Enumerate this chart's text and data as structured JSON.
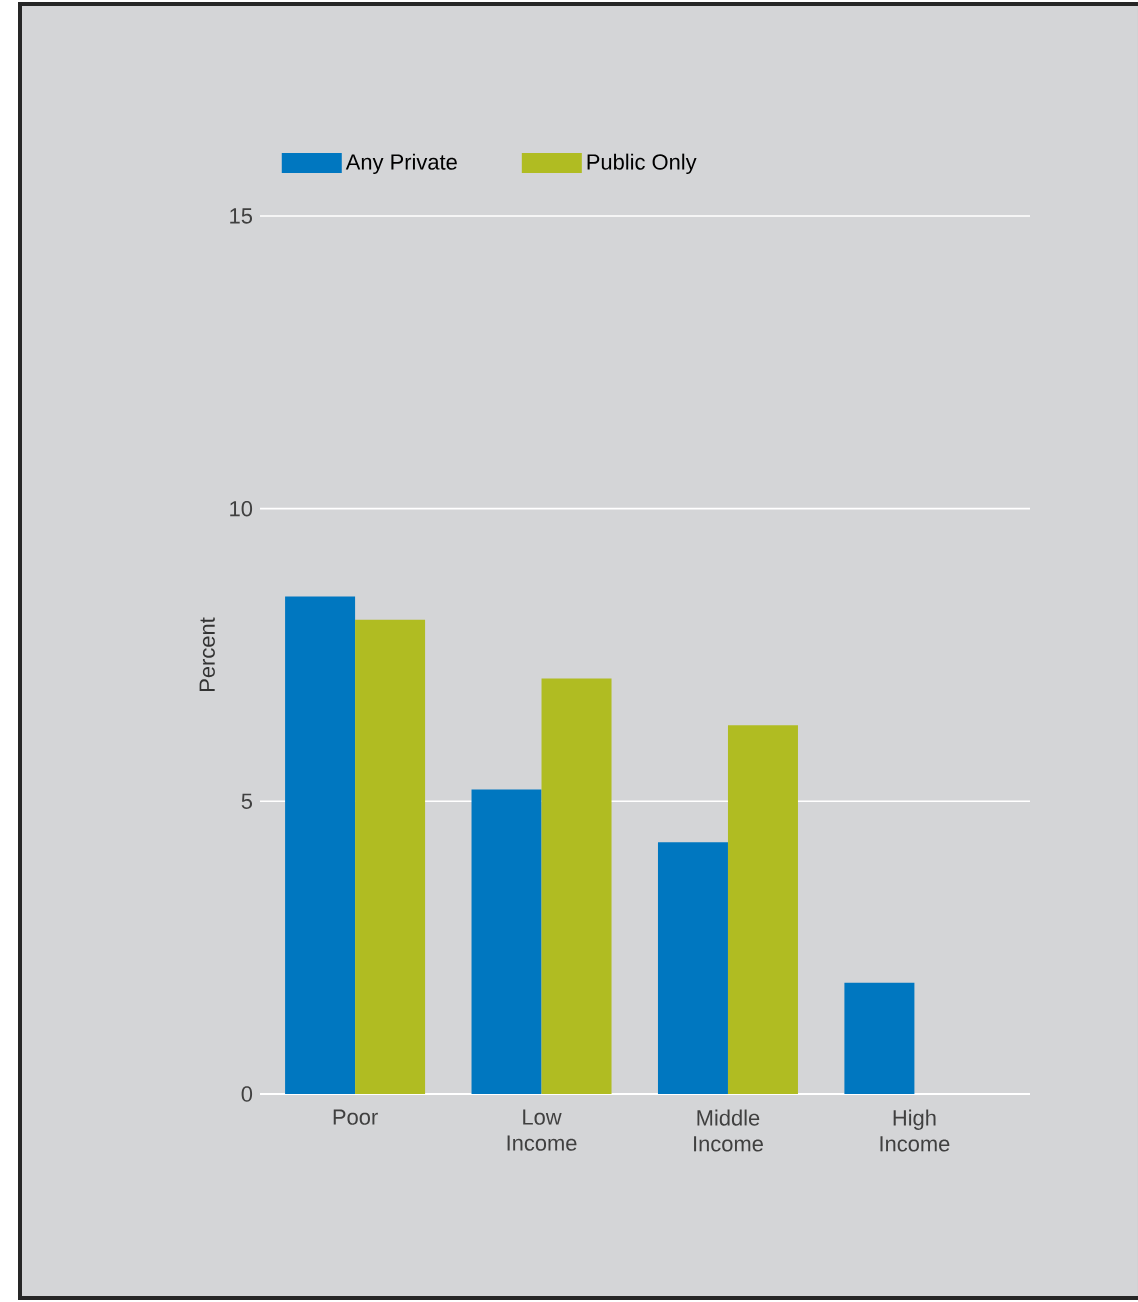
{
  "chart_data": {
    "type": "bar",
    "ylabel": "Percent",
    "categories": [
      "Poor",
      "Low Income",
      "Middle Income",
      "High Income"
    ],
    "series": [
      {
        "name": "Any Private",
        "color": "#0077c0",
        "values": [
          8.5,
          5.2,
          4.3,
          1.9
        ]
      },
      {
        "name": "Public Only",
        "color": "#b0bc22",
        "values": [
          8.1,
          7.1,
          6.3,
          null
        ]
      }
    ],
    "ylim": [
      0,
      15
    ],
    "yticks": [
      0,
      5,
      10,
      15
    ],
    "grid": "y",
    "legend": "top left"
  }
}
